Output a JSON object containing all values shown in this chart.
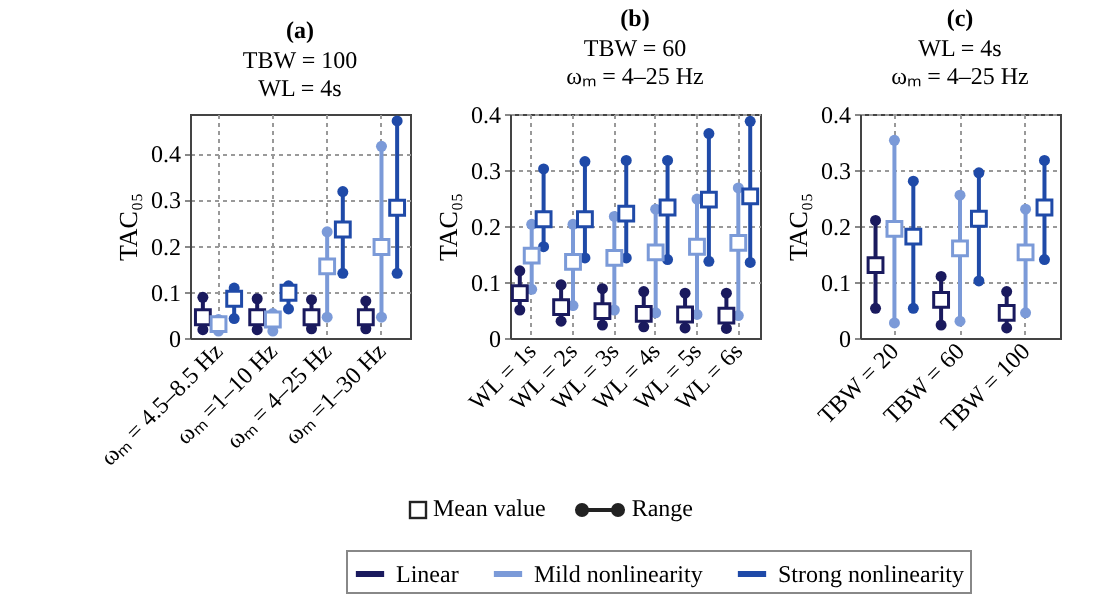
{
  "chart_data": [
    {
      "type": "scatter",
      "title": "(a)",
      "subtitle": "TBW = 100\nWL = 4s",
      "ylabel": "TAC₀₅",
      "categories": [
        "ωₘ = 4.5–8.5 Hz",
        "ωₘ =1–10 Hz",
        "ωₘ = 4–25 Hz",
        "ωₘ =1–30 Hz"
      ],
      "ylim": [
        0,
        0.485
      ],
      "yticks": [
        0,
        0.1,
        0.2,
        0.3,
        0.4
      ],
      "grid": true,
      "marker": "square",
      "legend": false,
      "series": [
        {
          "color": "#1a1a5e",
          "values": [
            0.045,
            0.045,
            0.045,
            0.045
          ],
          "errors": [
            [
              0.018,
              0.088
            ],
            [
              0.018,
              0.085
            ],
            [
              0.02,
              0.083
            ],
            [
              0.02,
              0.08
            ]
          ]
        },
        {
          "color": "#7b9ad8",
          "values": [
            0.03,
            0.04,
            0.155,
            0.197
          ],
          "errors": [
            [
              0.015,
              0.04
            ],
            [
              0.015,
              0.053
            ],
            [
              0.045,
              0.23
            ],
            [
              0.045,
              0.415
            ]
          ]
        },
        {
          "color": "#1f4aa8",
          "values": [
            0.085,
            0.098,
            0.235,
            0.282
          ],
          "errors": [
            [
              0.042,
              0.108
            ],
            [
              0.063,
              0.113
            ],
            [
              0.14,
              0.317
            ],
            [
              0.14,
              0.47
            ]
          ]
        }
      ]
    },
    {
      "type": "scatter",
      "title": "(b)",
      "subtitle": "TBW = 60\nωₘ = 4–25 Hz",
      "ylabel": "TAC₀₅",
      "categories": [
        "WL = 1s",
        "WL = 2s",
        "WL = 3s",
        "WL = 4s",
        "WL = 5s",
        "WL = 6s"
      ],
      "ylim": [
        0,
        0.4
      ],
      "yticks": [
        0,
        0.1,
        0.2,
        0.3,
        0.4
      ],
      "grid": true,
      "marker": "square",
      "legend": "bottom",
      "annotations": [
        "Mean value",
        "Range"
      ],
      "series": [
        {
          "name": "Linear",
          "color": "#1a1a5e",
          "values": [
            0.08,
            0.055,
            0.048,
            0.043,
            0.042,
            0.04
          ],
          "errors": [
            [
              0.05,
              0.12
            ],
            [
              0.03,
              0.095
            ],
            [
              0.023,
              0.088
            ],
            [
              0.02,
              0.083
            ],
            [
              0.018,
              0.08
            ],
            [
              0.017,
              0.08
            ]
          ]
        },
        {
          "name": "Mild nonlinearity",
          "color": "#7b9ad8",
          "values": [
            0.147,
            0.136,
            0.143,
            0.153,
            0.163,
            0.17
          ],
          "errors": [
            [
              0.087,
              0.203
            ],
            [
              0.058,
              0.203
            ],
            [
              0.05,
              0.217
            ],
            [
              0.045,
              0.23
            ],
            [
              0.042,
              0.248
            ],
            [
              0.04,
              0.268
            ]
          ]
        },
        {
          "name": "Strong nonlinearity",
          "color": "#1f4aa8",
          "values": [
            0.212,
            0.212,
            0.222,
            0.233,
            0.247,
            0.253
          ],
          "errors": [
            [
              0.163,
              0.302
            ],
            [
              0.143,
              0.315
            ],
            [
              0.143,
              0.317
            ],
            [
              0.14,
              0.317
            ],
            [
              0.137,
              0.365
            ],
            [
              0.135,
              0.387
            ]
          ]
        }
      ]
    },
    {
      "type": "scatter",
      "title": "(c)",
      "subtitle": "WL = 4s\nωₘ = 4–25 Hz",
      "ylabel": "TAC₀₅",
      "categories": [
        "TBW = 20",
        "TBW = 60",
        "TBW = 100"
      ],
      "ylim": [
        0,
        0.4
      ],
      "yticks": [
        0,
        0.1,
        0.2,
        0.3,
        0.4
      ],
      "grid": true,
      "marker": "square",
      "legend": false,
      "series": [
        {
          "color": "#1a1a5e",
          "values": [
            0.13,
            0.068,
            0.045
          ],
          "errors": [
            [
              0.053,
              0.21
            ],
            [
              0.023,
              0.11
            ],
            [
              0.018,
              0.083
            ]
          ]
        },
        {
          "color": "#7b9ad8",
          "values": [
            0.195,
            0.16,
            0.153
          ],
          "errors": [
            [
              0.027,
              0.353
            ],
            [
              0.03,
              0.255
            ],
            [
              0.045,
              0.23
            ]
          ]
        },
        {
          "color": "#1f4aa8",
          "values": [
            0.181,
            0.213,
            0.233
          ],
          "errors": [
            [
              0.053,
              0.28
            ],
            [
              0.102,
              0.295
            ],
            [
              0.14,
              0.317
            ]
          ]
        }
      ]
    }
  ]
}
